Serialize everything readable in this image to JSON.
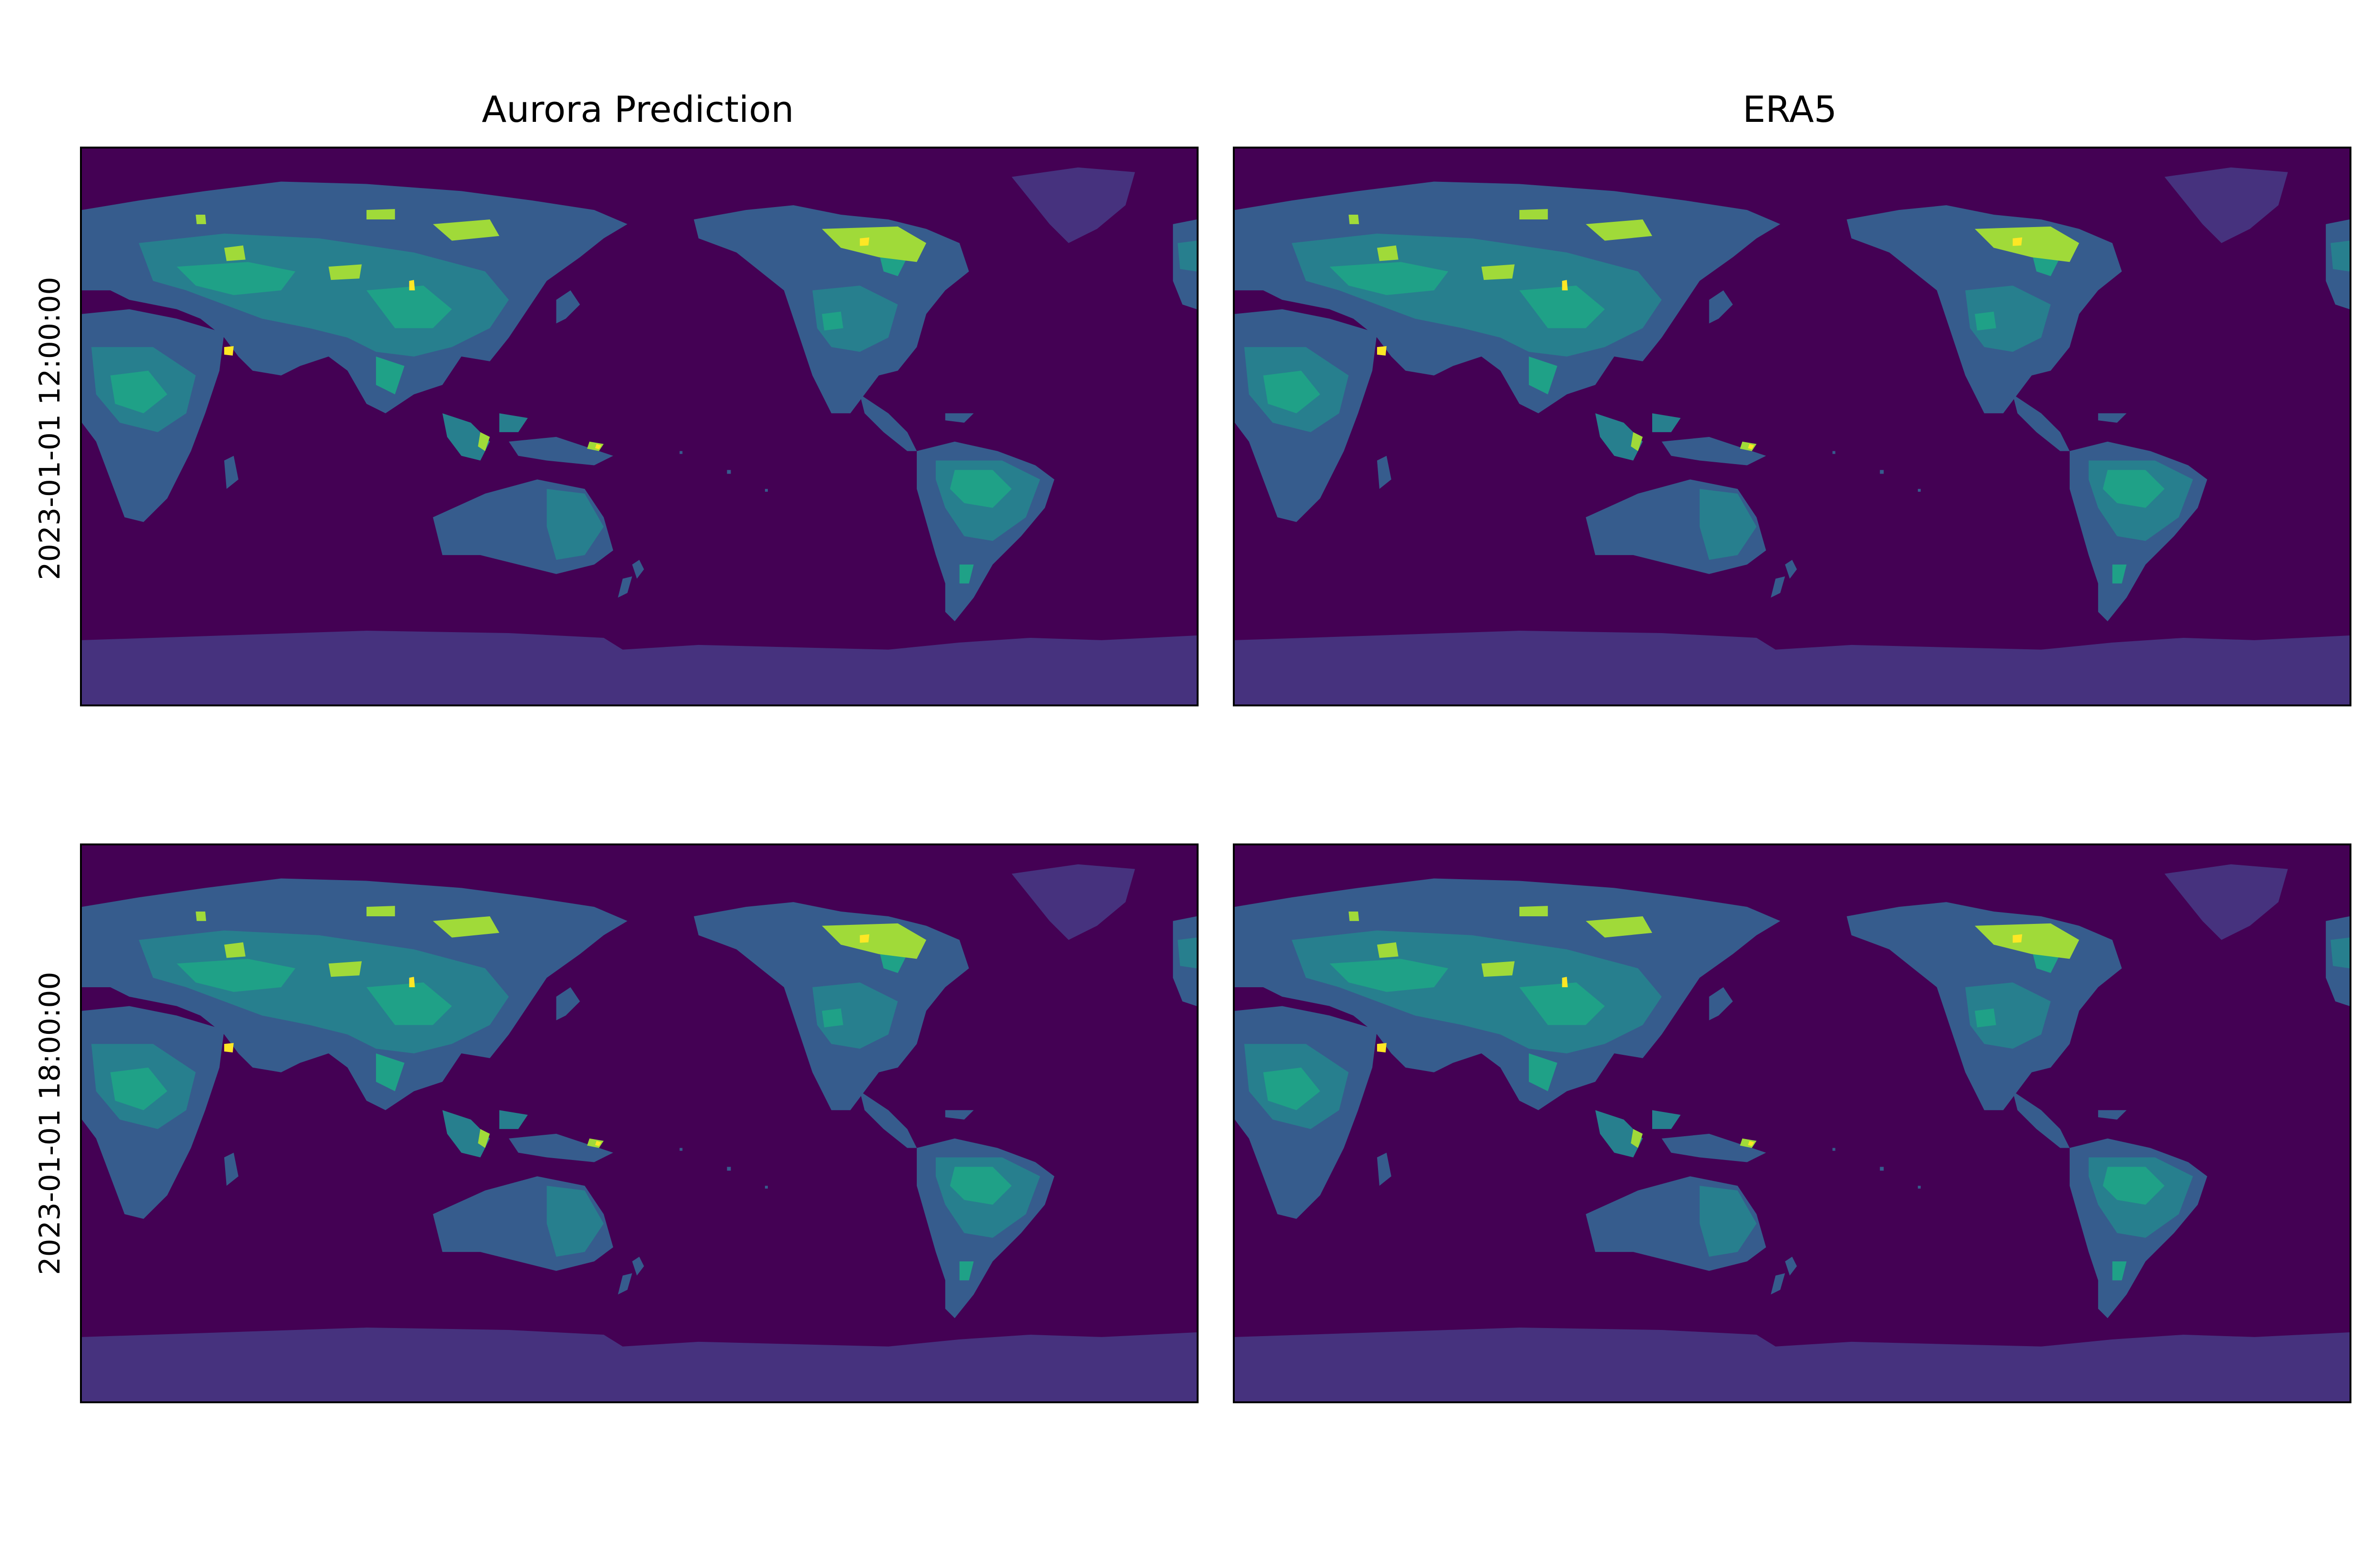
{
  "figure": {
    "columns": [
      {
        "title": "Aurora Prediction"
      },
      {
        "title": "ERA5"
      }
    ],
    "rows": [
      {
        "label": "2023-01-01 12:00:00"
      },
      {
        "label": "2023-01-01 18:00:00"
      }
    ]
  },
  "colors": {
    "ocean": "#440154",
    "ice": "#46327e",
    "land_low": "#365c8d",
    "land_mid": "#277f8e",
    "land_high": "#1fa187",
    "land_peak": "#a0da39",
    "land_max": "#fde725"
  },
  "map": {
    "projection": "PlateCarree",
    "central_longitude": 180
  }
}
